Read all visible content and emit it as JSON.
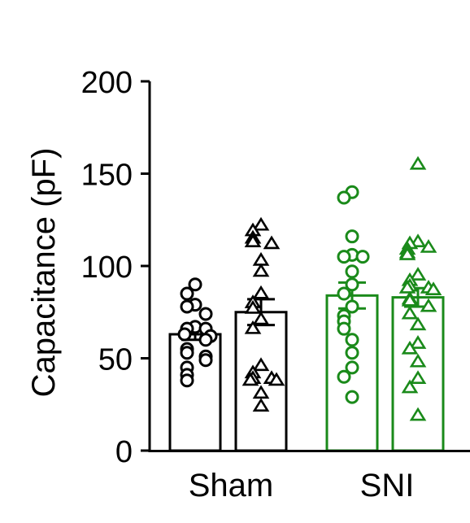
{
  "chart_data": {
    "type": "bar",
    "title": "",
    "xlabel": "",
    "ylabel": "Capacitance (pF)",
    "ylim": [
      0,
      200
    ],
    "yticks": [
      0,
      50,
      100,
      150,
      200
    ],
    "categories": [
      "Sham",
      "SNI"
    ],
    "colors": {
      "Sham": "#000000",
      "SNI": "#1a8a1a"
    },
    "series": [
      {
        "marker": "circle",
        "values": [
          63,
          84
        ],
        "sem": [
          3,
          7
        ],
        "points": {
          "Sham": [
            90,
            85,
            79,
            78,
            74,
            67,
            66,
            66,
            63,
            62,
            60,
            55,
            53,
            51,
            49,
            45,
            41,
            38
          ],
          "SNI": [
            140,
            137,
            116,
            106,
            105,
            105,
            97,
            90,
            85,
            78,
            73,
            70,
            66,
            60,
            53,
            45,
            40,
            29
          ]
        }
      },
      {
        "marker": "triangle",
        "values": [
          75,
          83
        ],
        "sem": [
          7,
          5
        ],
        "points": {
          "Sham": [
            122,
            119,
            115,
            113,
            112,
            103,
            97,
            85,
            80,
            77,
            71,
            66,
            46,
            42,
            39,
            39,
            38,
            38,
            31,
            24
          ],
          "SNI": [
            155,
            113,
            112,
            110,
            109,
            107,
            106,
            95,
            92,
            89,
            88,
            88,
            87,
            82,
            81,
            78,
            74,
            68,
            58,
            55,
            48,
            39,
            34,
            19
          ]
        }
      }
    ]
  }
}
